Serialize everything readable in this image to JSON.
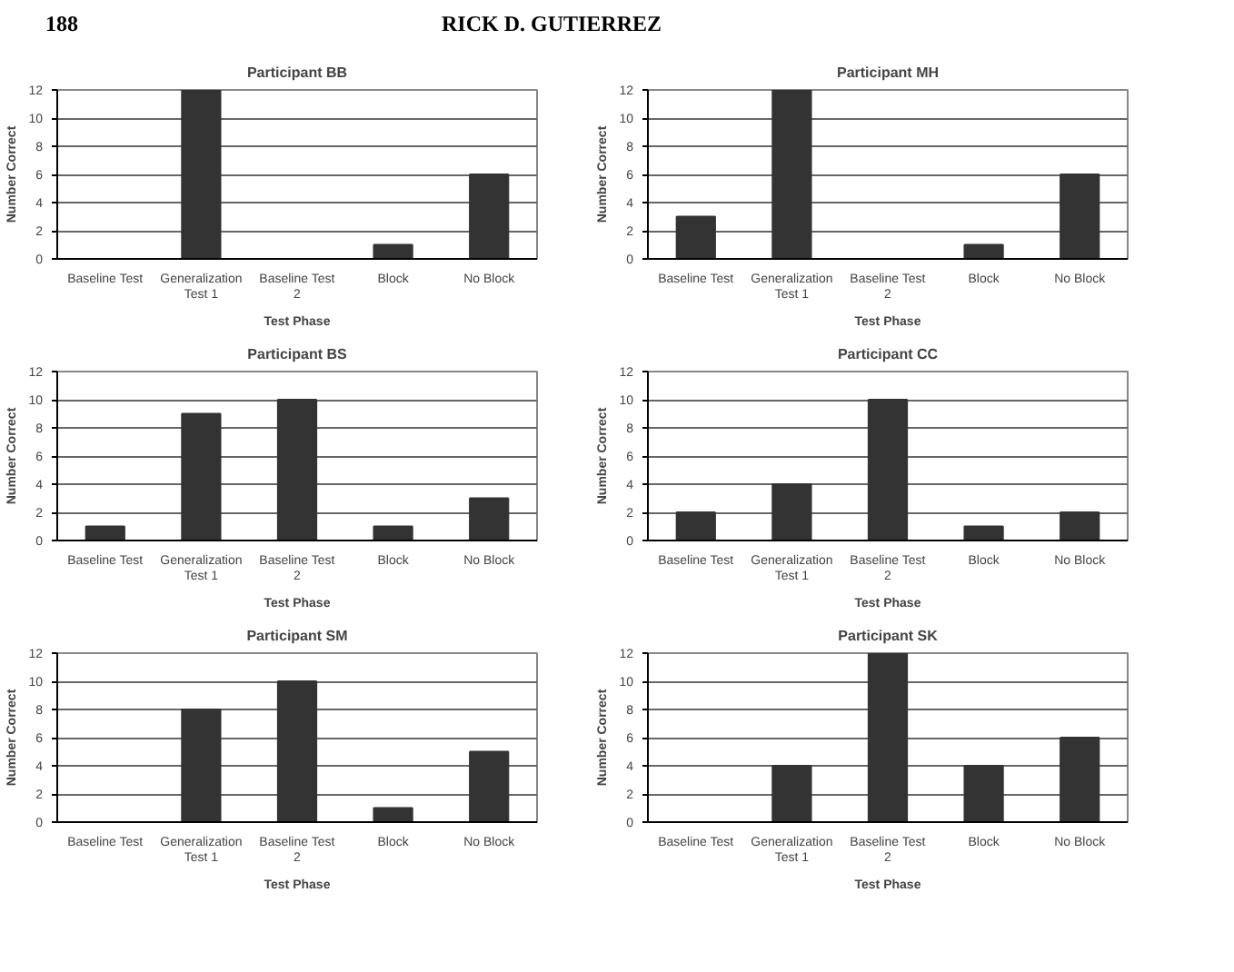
{
  "chart_data": [
    {
      "type": "bar",
      "title": "Participant BB",
      "xlabel": "Test Phase",
      "ylabel": "Number Correct",
      "categories": [
        "Baseline Test",
        "Generalization Test 1",
        "Baseline Test 2",
        "Block",
        "No Block"
      ],
      "values": [
        0,
        12,
        0,
        1,
        6
      ],
      "color": "#333333",
      "ylim": [
        0,
        12
      ],
      "yticks": [
        0,
        2,
        4,
        6,
        8,
        10,
        12
      ],
      "grid": "y",
      "annotations": [
        "188",
        "RICK D. GUTIERREZ"
      ]
    },
    {
      "type": "bar",
      "title": "Participant MH",
      "xlabel": "Test Phase",
      "ylabel": "Number Correct",
      "categories": [
        "Baseline Test",
        "Generalization Test 1",
        "Baseline Test 2",
        "Block",
        "No Block"
      ],
      "values": [
        3,
        12,
        0,
        1,
        6
      ],
      "color": "#333333",
      "ylim": [
        0,
        12
      ],
      "yticks": [
        0,
        2,
        4,
        6,
        8,
        10,
        12
      ],
      "grid": "y"
    },
    {
      "type": "bar",
      "title": "Participant BS",
      "xlabel": "Test Phase",
      "ylabel": "Number Correct",
      "categories": [
        "Baseline Test",
        "Generalization Test 1",
        "Baseline Test 2",
        "Block",
        "No Block"
      ],
      "values": [
        1,
        9,
        10,
        1,
        3
      ],
      "color": "#333333",
      "ylim": [
        0,
        12
      ],
      "yticks": [
        0,
        2,
        4,
        6,
        8,
        10,
        12
      ],
      "grid": "y"
    },
    {
      "type": "bar",
      "title": "Participant CC",
      "xlabel": "Test Phase",
      "ylabel": "Number Correct",
      "categories": [
        "Baseline Test",
        "Generalization Test 1",
        "Baseline Test 2",
        "Block",
        "No Block"
      ],
      "values": [
        2,
        4,
        10,
        1,
        2
      ],
      "color": "#333333",
      "ylim": [
        0,
        12
      ],
      "yticks": [
        0,
        2,
        4,
        6,
        8,
        10,
        12
      ],
      "grid": "y"
    },
    {
      "type": "bar",
      "title": "Participant SM",
      "xlabel": "Test Phase",
      "ylabel": "Number Correct",
      "categories": [
        "Baseline Test",
        "Generalization Test 1",
        "Baseline Test 2",
        "Block",
        "No Block"
      ],
      "values": [
        0,
        8,
        10,
        1,
        5
      ],
      "color": "#333333",
      "ylim": [
        0,
        12
      ],
      "yticks": [
        0,
        2,
        4,
        6,
        8,
        10,
        12
      ],
      "grid": "y"
    },
    {
      "type": "bar",
      "title": "Participant SK",
      "xlabel": "Test Phase",
      "ylabel": "Number Correct",
      "categories": [
        "Baseline Test",
        "Generalization Test 1",
        "Baseline Test 2",
        "Block",
        "No Block"
      ],
      "values": [
        0,
        4,
        12,
        4,
        6
      ],
      "color": "#333333",
      "ylim": [
        0,
        12
      ],
      "yticks": [
        0,
        2,
        4,
        6,
        8,
        10,
        12
      ],
      "grid": "y"
    }
  ]
}
